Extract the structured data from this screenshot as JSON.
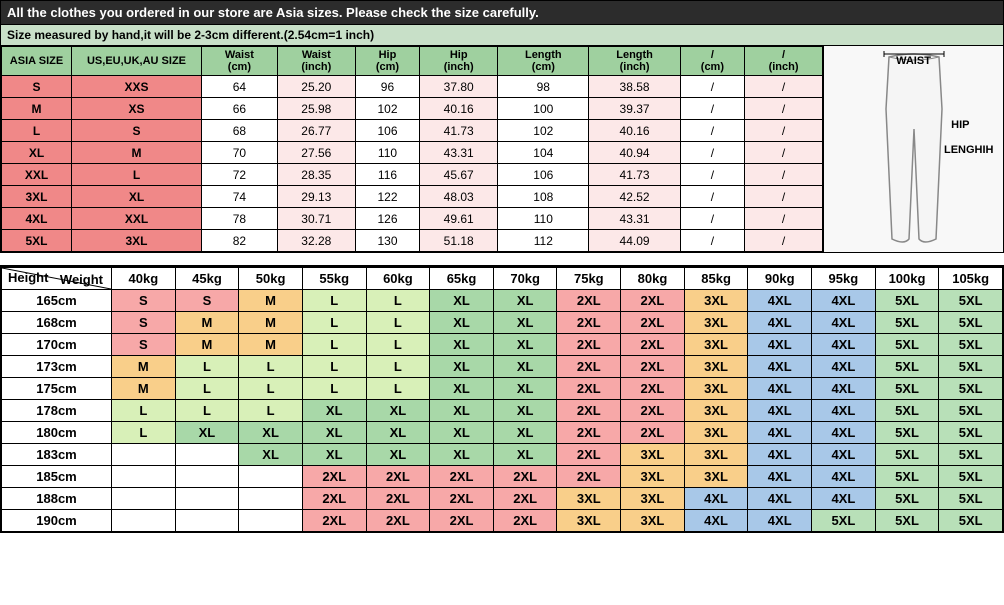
{
  "banner": "All the clothes you ordered in our store are Asia sizes. Please check the size carefully.",
  "note": "Size measured by hand,it will be 2-3cm different.(2.54cm=1 inch)",
  "sizeHeaders": [
    "ASIA SIZE",
    "US,EU,UK,AU SIZE",
    "Waist (cm)",
    "Waist (inch)",
    "Hip (cm)",
    "Hip (inch)",
    "Length (cm)",
    "Length (inch)",
    "/ (cm)",
    "/ (inch)"
  ],
  "sizeRows": [
    {
      "asia": "S",
      "us": "XXS",
      "wc": "64",
      "wi": "25.20",
      "hc": "96",
      "hi": "37.80",
      "lc": "98",
      "li": "38.58",
      "ec": "/",
      "ei": "/"
    },
    {
      "asia": "M",
      "us": "XS",
      "wc": "66",
      "wi": "25.98",
      "hc": "102",
      "hi": "40.16",
      "lc": "100",
      "li": "39.37",
      "ec": "/",
      "ei": "/"
    },
    {
      "asia": "L",
      "us": "S",
      "wc": "68",
      "wi": "26.77",
      "hc": "106",
      "hi": "41.73",
      "lc": "102",
      "li": "40.16",
      "ec": "/",
      "ei": "/"
    },
    {
      "asia": "XL",
      "us": "M",
      "wc": "70",
      "wi": "27.56",
      "hc": "110",
      "hi": "43.31",
      "lc": "104",
      "li": "40.94",
      "ec": "/",
      "ei": "/"
    },
    {
      "asia": "XXL",
      "us": "L",
      "wc": "72",
      "wi": "28.35",
      "hc": "116",
      "hi": "45.67",
      "lc": "106",
      "li": "41.73",
      "ec": "/",
      "ei": "/"
    },
    {
      "asia": "3XL",
      "us": "XL",
      "wc": "74",
      "wi": "29.13",
      "hc": "122",
      "hi": "48.03",
      "lc": "108",
      "li": "42.52",
      "ec": "/",
      "ei": "/"
    },
    {
      "asia": "4XL",
      "us": "XXL",
      "wc": "78",
      "wi": "30.71",
      "hc": "126",
      "hi": "49.61",
      "lc": "110",
      "li": "43.31",
      "ec": "/",
      "ei": "/"
    },
    {
      "asia": "5XL",
      "us": "3XL",
      "wc": "82",
      "wi": "32.28",
      "hc": "130",
      "hi": "51.18",
      "lc": "112",
      "li": "44.09",
      "ec": "/",
      "ei": "/"
    }
  ],
  "illus": {
    "waist": "WAIST",
    "hip": "HIP",
    "length": "LENGHIH"
  },
  "corner": {
    "weight": "Weight",
    "height": "Height"
  },
  "weights": [
    "40kg",
    "45kg",
    "50kg",
    "55kg",
    "60kg",
    "65kg",
    "70kg",
    "75kg",
    "80kg",
    "85kg",
    "90kg",
    "95kg",
    "100kg",
    "105kg"
  ],
  "recRows": [
    {
      "h": "165cm",
      "c": [
        "S",
        "S",
        "M",
        "L",
        "L",
        "XL",
        "XL",
        "2XL",
        "2XL",
        "3XL",
        "4XL",
        "4XL",
        "5XL",
        "5XL"
      ]
    },
    {
      "h": "168cm",
      "c": [
        "S",
        "M",
        "M",
        "L",
        "L",
        "XL",
        "XL",
        "2XL",
        "2XL",
        "3XL",
        "4XL",
        "4XL",
        "5XL",
        "5XL"
      ]
    },
    {
      "h": "170cm",
      "c": [
        "S",
        "M",
        "M",
        "L",
        "L",
        "XL",
        "XL",
        "2XL",
        "2XL",
        "3XL",
        "4XL",
        "4XL",
        "5XL",
        "5XL"
      ]
    },
    {
      "h": "173cm",
      "c": [
        "M",
        "L",
        "L",
        "L",
        "L",
        "XL",
        "XL",
        "2XL",
        "2XL",
        "3XL",
        "4XL",
        "4XL",
        "5XL",
        "5XL"
      ]
    },
    {
      "h": "175cm",
      "c": [
        "M",
        "L",
        "L",
        "L",
        "L",
        "XL",
        "XL",
        "2XL",
        "2XL",
        "3XL",
        "4XL",
        "4XL",
        "5XL",
        "5XL"
      ]
    },
    {
      "h": "178cm",
      "c": [
        "L",
        "L",
        "L",
        "XL",
        "XL",
        "XL",
        "XL",
        "2XL",
        "2XL",
        "3XL",
        "4XL",
        "4XL",
        "5XL",
        "5XL"
      ]
    },
    {
      "h": "180cm",
      "c": [
        "L",
        "XL",
        "XL",
        "XL",
        "XL",
        "XL",
        "XL",
        "2XL",
        "2XL",
        "3XL",
        "4XL",
        "4XL",
        "5XL",
        "5XL"
      ]
    },
    {
      "h": "183cm",
      "c": [
        "",
        "",
        "XL",
        "XL",
        "XL",
        "XL",
        "XL",
        "2XL",
        "3XL",
        "3XL",
        "4XL",
        "4XL",
        "5XL",
        "5XL"
      ]
    },
    {
      "h": "185cm",
      "c": [
        "",
        "",
        "",
        "2XL",
        "2XL",
        "2XL",
        "2XL",
        "2XL",
        "3XL",
        "3XL",
        "4XL",
        "4XL",
        "5XL",
        "5XL"
      ]
    },
    {
      "h": "188cm",
      "c": [
        "",
        "",
        "",
        "2XL",
        "2XL",
        "2XL",
        "2XL",
        "3XL",
        "3XL",
        "4XL",
        "4XL",
        "4XL",
        "5XL",
        "5XL"
      ]
    },
    {
      "h": "190cm",
      "c": [
        "",
        "",
        "",
        "2XL",
        "2XL",
        "2XL",
        "2XL",
        "3XL",
        "3XL",
        "4XL",
        "4XL",
        "5XL",
        "5XL",
        "5XL"
      ]
    }
  ],
  "colors": {
    "S": "c-s",
    "M": "c-m",
    "L": "c-l",
    "XL": "c-xl",
    "2XL": "c-2x",
    "3XL": "c-3x",
    "4XL": "c-4x",
    "5XL": "c-5x",
    "": "c-emp"
  }
}
